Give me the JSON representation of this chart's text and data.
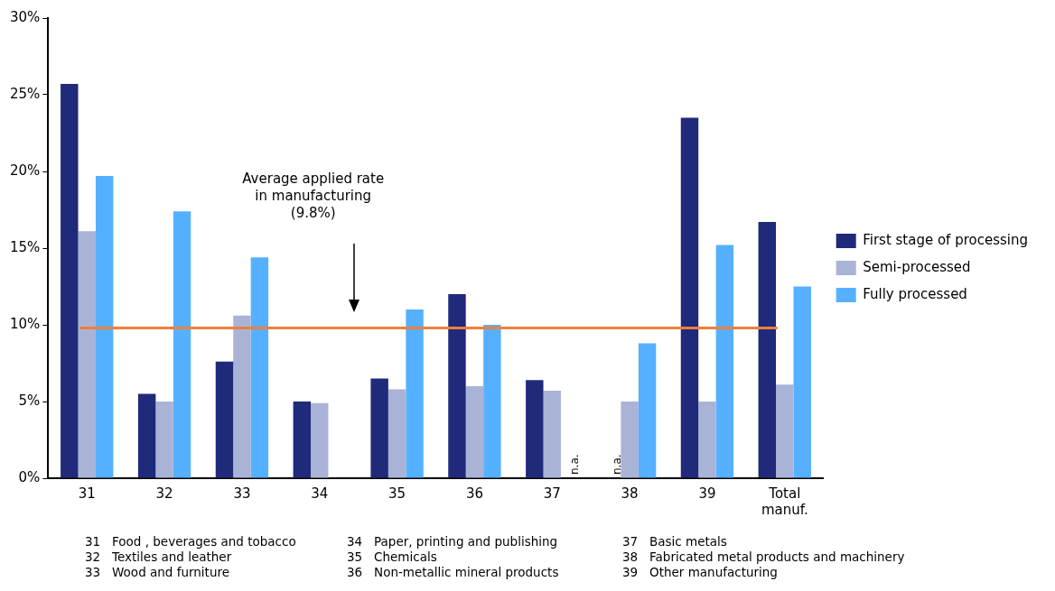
{
  "chart_data": {
    "type": "bar",
    "categories": [
      "31",
      "32",
      "33",
      "34",
      "35",
      "36",
      "37",
      "38",
      "39",
      "Total manuf."
    ],
    "series": [
      {
        "name": "First stage of processing",
        "color": "#1f2a7a",
        "values": [
          25.7,
          5.5,
          7.6,
          5.0,
          6.5,
          12.0,
          6.4,
          null,
          23.5,
          16.7
        ]
      },
      {
        "name": "Semi-processed",
        "color": "#a9b3d6",
        "values": [
          16.1,
          5.0,
          10.6,
          4.9,
          5.8,
          6.0,
          5.7,
          5.0,
          5.0,
          6.1
        ]
      },
      {
        "name": "Fully processed",
        "color": "#55b1ff",
        "values": [
          19.7,
          17.4,
          14.4,
          null,
          11.0,
          10.0,
          null,
          8.8,
          15.2,
          12.5
        ]
      }
    ],
    "ylim": [
      0,
      30
    ],
    "yticks": [
      {
        "value": 0,
        "label": "0%"
      },
      {
        "value": 5,
        "label": "5%"
      },
      {
        "value": 10,
        "label": "10%"
      },
      {
        "value": 15,
        "label": "15%"
      },
      {
        "value": 20,
        "label": "20%"
      },
      {
        "value": 25,
        "label": "25%"
      },
      {
        "value": 30,
        "label": "30%"
      }
    ],
    "grid": false,
    "legend": "right",
    "ref_lines": [
      {
        "axis": "y",
        "value": 9.8,
        "color": "#f07f3c"
      }
    ],
    "annotations": [
      "Average applied rate\nin manufacturing\n(9.8%)",
      {
        "text": "n.a.",
        "x": "37",
        "y": 0
      },
      {
        "text": "n.a.",
        "x": "38",
        "y": 0
      },
      "31   Food , beverages and tobacco",
      "32   Textiles and leather",
      "33   Wood and furniture",
      "34   Paper, printing and publishing",
      "35   Chemicals",
      "36   Non-metallic mineral products",
      "37   Basic metals",
      "38   Fabricated metal products and machinery",
      "39   Other manufacturing"
    ]
  }
}
